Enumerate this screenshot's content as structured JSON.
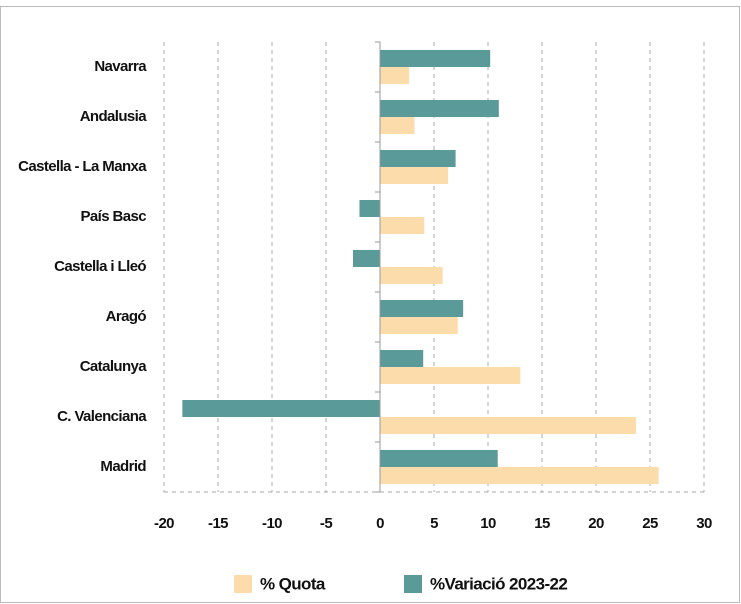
{
  "chart_data": {
    "type": "bar",
    "orientation": "horizontal",
    "categories": [
      "Navarra",
      "Andalusia",
      "Castella - La Manxa",
      "País Basc",
      "Castella i Lleó",
      "Aragó",
      "Catalunya",
      "C. Valenciana",
      "Madrid"
    ],
    "series": [
      {
        "name": "% Quota",
        "color": "#fddcab",
        "values": [
          2.7,
          3.2,
          6.3,
          4.1,
          5.8,
          7.2,
          13.0,
          23.7,
          25.8
        ]
      },
      {
        "name": "%Variació 2023-22",
        "color": "#5a9a98",
        "values": [
          10.2,
          11.0,
          7.0,
          -1.9,
          -2.5,
          7.7,
          4.0,
          -18.3,
          10.9
        ]
      }
    ],
    "xlim": [
      -20,
      30
    ],
    "xticks": [
      -20,
      -15,
      -10,
      -5,
      0,
      5,
      10,
      15,
      20,
      25,
      30
    ],
    "grid": true,
    "legend": "bottom"
  }
}
